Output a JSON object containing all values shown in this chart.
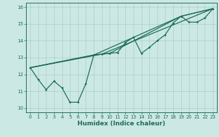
{
  "title": "",
  "xlabel": "Humidex (Indice chaleur)",
  "bg_color": "#cce8e4",
  "grid_color": "#aaccca",
  "line_color": "#1a6b5a",
  "xlim": [
    -0.5,
    23.5
  ],
  "ylim": [
    9.75,
    16.25
  ],
  "xticks": [
    0,
    1,
    2,
    3,
    4,
    5,
    6,
    7,
    8,
    9,
    10,
    11,
    12,
    13,
    14,
    15,
    16,
    17,
    18,
    19,
    20,
    21,
    22,
    23
  ],
  "yticks": [
    10,
    11,
    12,
    13,
    14,
    15,
    16
  ],
  "series": [
    [
      0,
      12.4
    ],
    [
      1,
      11.7
    ],
    [
      2,
      11.1
    ],
    [
      3,
      11.6
    ],
    [
      4,
      11.2
    ],
    [
      5,
      10.35
    ],
    [
      6,
      10.35
    ],
    [
      7,
      11.45
    ],
    [
      8,
      13.15
    ],
    [
      9,
      13.2
    ],
    [
      10,
      13.25
    ],
    [
      11,
      13.3
    ],
    [
      12,
      13.9
    ],
    [
      13,
      14.2
    ],
    [
      14,
      13.25
    ],
    [
      15,
      13.6
    ],
    [
      16,
      14.0
    ],
    [
      17,
      14.35
    ],
    [
      18,
      15.05
    ],
    [
      19,
      15.45
    ],
    [
      20,
      15.1
    ],
    [
      21,
      15.1
    ],
    [
      22,
      15.35
    ],
    [
      23,
      15.9
    ]
  ],
  "line2": [
    [
      0,
      12.4
    ],
    [
      9,
      13.2
    ],
    [
      23,
      15.9
    ]
  ],
  "line3": [
    [
      0,
      12.4
    ],
    [
      8,
      13.15
    ],
    [
      9,
      13.2
    ],
    [
      10,
      13.25
    ],
    [
      19,
      15.45
    ],
    [
      23,
      15.9
    ]
  ],
  "line4": [
    [
      0,
      12.4
    ],
    [
      8,
      13.15
    ],
    [
      19,
      15.45
    ],
    [
      23,
      15.9
    ]
  ]
}
